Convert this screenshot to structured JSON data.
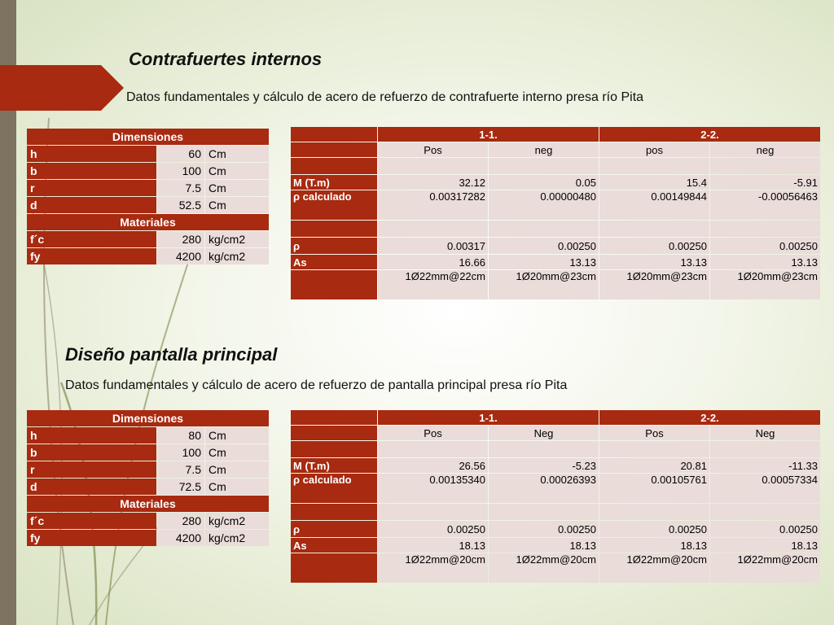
{
  "section1": {
    "title": "Contrafuertes internos",
    "subtitle": "Datos fundamentales y cálculo de acero de refuerzo de contrafuerte interno presa río Pita",
    "dims": {
      "header": "Dimensiones",
      "rows": [
        [
          "h",
          "60",
          "Cm"
        ],
        [
          "b",
          "100",
          "Cm"
        ],
        [
          "r",
          "7.5",
          "Cm"
        ],
        [
          "d",
          "52.5",
          "Cm"
        ]
      ],
      "materials_header": "Materiales",
      "materials": [
        [
          "f´c",
          "280",
          "kg/cm2"
        ],
        [
          "fy",
          "4200",
          "kg/cm2"
        ]
      ]
    },
    "calc": {
      "groups": [
        "1-1.",
        "2-2."
      ],
      "subheaders": [
        "Pos",
        "neg",
        "pos",
        "neg"
      ],
      "m_label": "M (T.m)",
      "m_values": [
        "32.12",
        "0.05",
        "15.4",
        "-5.91"
      ],
      "rho_calc_label": "ρ calculado",
      "rho_calc_values": [
        "0.00317282",
        "0.00000480",
        "0.00149844",
        "-0.00056463"
      ],
      "rho_label": "ρ",
      "rho_values": [
        "0.00317",
        "0.00250",
        "0.00250",
        "0.00250"
      ],
      "as_label": "As",
      "as_values": [
        "16.66",
        "13.13",
        "13.13",
        "13.13"
      ],
      "bars": [
        "1Ø22mm@22cm",
        "1Ø20mm@23cm",
        "1Ø20mm@23cm",
        "1Ø20mm@23cm"
      ]
    }
  },
  "section2": {
    "title": "Diseño pantalla principal",
    "subtitle": "Datos fundamentales y cálculo de acero de refuerzo de pantalla principal presa río Pita",
    "dims": {
      "header": "Dimensiones",
      "rows": [
        [
          "h",
          "80",
          "Cm"
        ],
        [
          "b",
          "100",
          "Cm"
        ],
        [
          "r",
          "7.5",
          "Cm"
        ],
        [
          "d",
          "72.5",
          "Cm"
        ]
      ],
      "materials_header": "Materiales",
      "materials": [
        [
          "f´c",
          "280",
          "kg/cm2"
        ],
        [
          "fy",
          "4200",
          "kg/cm2"
        ]
      ]
    },
    "calc": {
      "groups": [
        "1-1.",
        "2-2."
      ],
      "subheaders": [
        "Pos",
        "Neg",
        "Pos",
        "Neg"
      ],
      "m_label": "M (T.m)",
      "m_values": [
        "26.56",
        "-5.23",
        "20.81",
        "-11.33"
      ],
      "rho_calc_label": "ρ calculado",
      "rho_calc_values": [
        "0.00135340",
        "0.00026393",
        "0.00105761",
        "0.00057334"
      ],
      "rho_label": "ρ",
      "rho_values": [
        "0.00250",
        "0.00250",
        "0.00250",
        "0.00250"
      ],
      "as_label": "As",
      "as_values": [
        "18.13",
        "18.13",
        "18.13",
        "18.13"
      ],
      "bars": [
        "1Ø22mm@20cm",
        "1Ø22mm@20cm",
        "1Ø22mm@20cm",
        "1Ø22mm@20cm"
      ]
    }
  }
}
